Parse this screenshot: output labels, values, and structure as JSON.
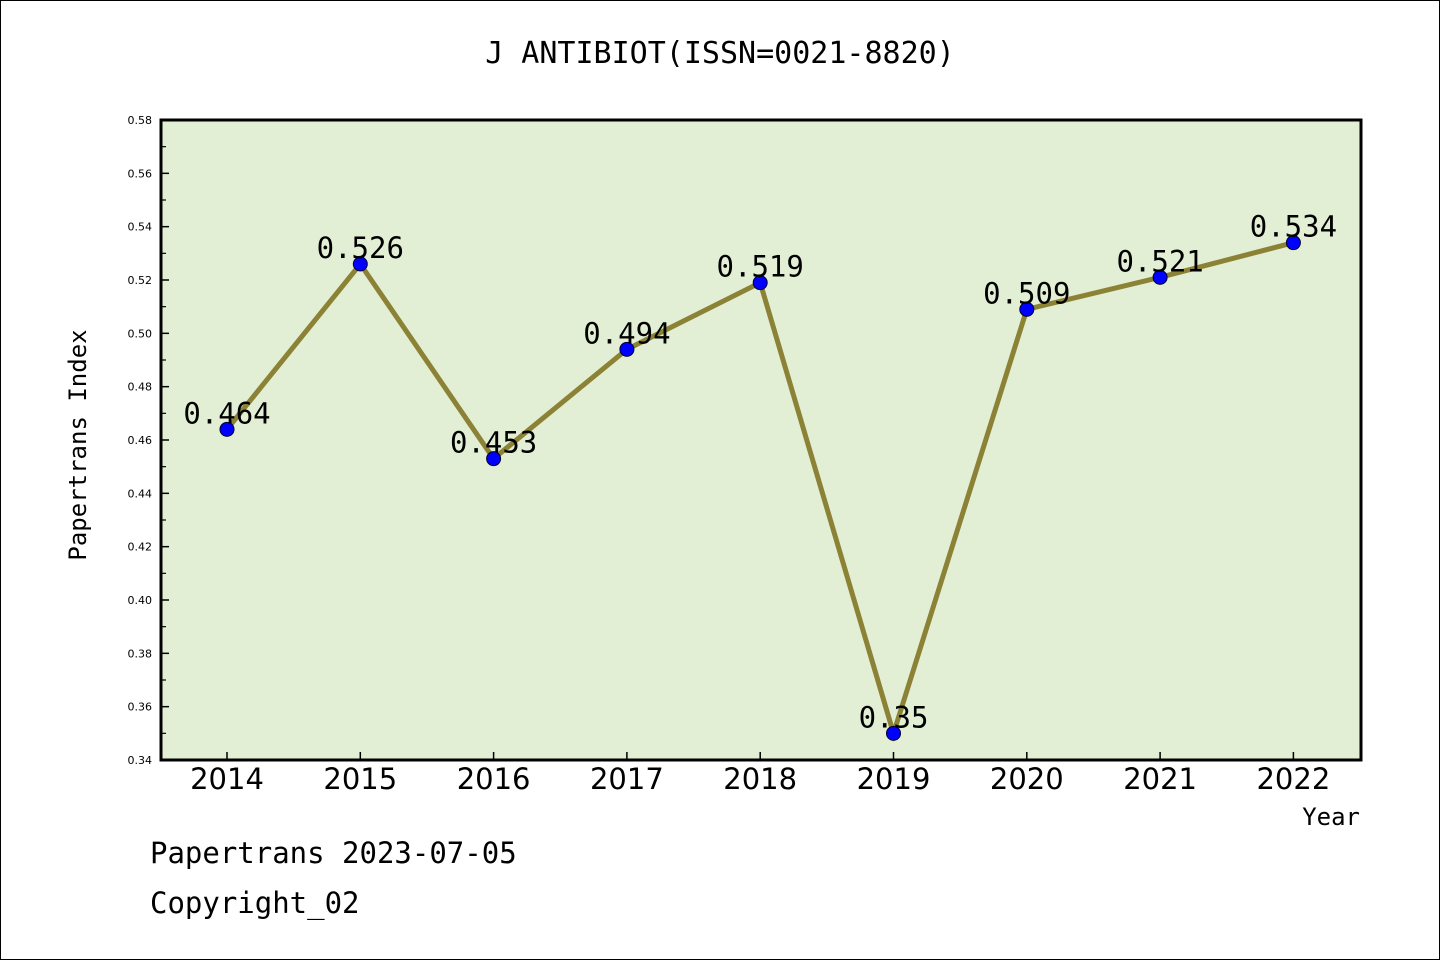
{
  "chart_data": {
    "type": "line",
    "title": "J ANTIBIOT(ISSN=0021-8820)",
    "xlabel": "Year",
    "ylabel": "Papertrans Index",
    "categories": [
      "2014",
      "2015",
      "2016",
      "2017",
      "2018",
      "2019",
      "2020",
      "2021",
      "2022"
    ],
    "values": [
      0.464,
      0.526,
      0.453,
      0.494,
      0.519,
      0.35,
      0.509,
      0.521,
      0.534
    ],
    "data_labels": [
      "0.464",
      "0.526",
      "0.453",
      "0.494",
      "0.519",
      "0.35",
      "0.509",
      "0.521",
      "0.534"
    ],
    "ylim": [
      0.34,
      0.58
    ],
    "yticks": [
      "0.34",
      "0.36",
      "0.38",
      "0.40",
      "0.42",
      "0.44",
      "0.46",
      "0.48",
      "0.50",
      "0.52",
      "0.54",
      "0.56",
      "0.58"
    ],
    "grid": false,
    "legend": "none",
    "colors": {
      "plot_background": "#e2efd5",
      "line": "#8b8235",
      "marker": "#0000ff"
    }
  },
  "footer": {
    "line1": "Papertrans 2023-07-05",
    "line2": "Copyright_02"
  }
}
